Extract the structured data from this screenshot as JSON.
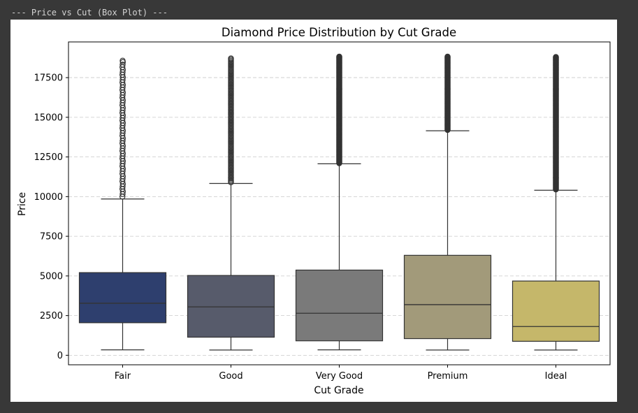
{
  "console": {
    "header": "--- Price vs Cut (Box Plot) ---"
  },
  "chart_data": {
    "type": "box",
    "title": "Diamond Price Distribution by Cut Grade",
    "xlabel": "Cut Grade",
    "ylabel": "Price",
    "ylim": [
      -600,
      19750
    ],
    "yticks": [
      0,
      2500,
      5000,
      7500,
      10000,
      12500,
      15000,
      17500
    ],
    "ytick_labels": [
      "0",
      "2500",
      "5000",
      "7500",
      "10000",
      "12500",
      "15000",
      "17500"
    ],
    "grid": "horizontal dashed",
    "categories": [
      "Fair",
      "Good",
      "Very Good",
      "Premium",
      "Ideal"
    ],
    "colors": [
      "#2e3f6e",
      "#575b6b",
      "#7a7a7a",
      "#a29a7a",
      "#c5b76a"
    ],
    "boxes": [
      {
        "whisker_low": 340,
        "q1": 2050,
        "median": 3280,
        "q3": 5210,
        "whisker_high": 9850,
        "outliers_min": 10000,
        "outliers_max": 18570,
        "outlier_density": "sparse"
      },
      {
        "whisker_low": 330,
        "q1": 1140,
        "median": 3050,
        "q3": 5030,
        "whisker_high": 10830,
        "outliers_min": 10900,
        "outliers_max": 18710,
        "outlier_density": "medium"
      },
      {
        "whisker_low": 340,
        "q1": 910,
        "median": 2650,
        "q3": 5370,
        "whisker_high": 12070,
        "outliers_min": 12100,
        "outliers_max": 18820,
        "outlier_density": "dense"
      },
      {
        "whisker_low": 330,
        "q1": 1050,
        "median": 3190,
        "q3": 6300,
        "whisker_high": 14150,
        "outliers_min": 14200,
        "outliers_max": 18820,
        "outlier_density": "dense"
      },
      {
        "whisker_low": 330,
        "q1": 880,
        "median": 1810,
        "q3": 4680,
        "whisker_high": 10400,
        "outliers_min": 10450,
        "outliers_max": 18800,
        "outlier_density": "dense"
      }
    ]
  }
}
